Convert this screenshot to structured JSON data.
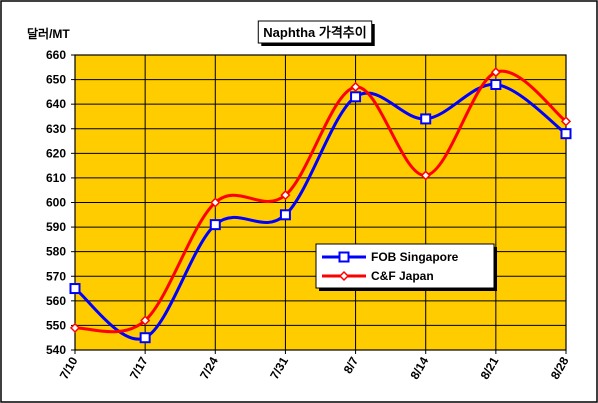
{
  "chart_data": {
    "type": "line",
    "title": "Naphtha 가격추이",
    "ylabel": "달러/MT",
    "xlabel": "",
    "categories": [
      "7/10",
      "7/17",
      "7/24",
      "7/31",
      "8/7",
      "8/14",
      "8/21",
      "8/28"
    ],
    "ylim": [
      540,
      660
    ],
    "ytick_step": 10,
    "grid": true,
    "legend_position": "lower-right",
    "colors": {
      "plot_background": "#FFCC00",
      "outer_background": "#FFFFFF",
      "grid": "#000000"
    },
    "series": [
      {
        "name": "FOB Singapore",
        "color": "#0000FF",
        "marker": "square",
        "values": [
          565,
          545,
          591,
          595,
          643,
          634,
          648,
          628
        ]
      },
      {
        "name": "C&F Japan",
        "color": "#FF0000",
        "marker": "diamond",
        "values": [
          549,
          552,
          600,
          603,
          647,
          611,
          653,
          633
        ]
      }
    ]
  }
}
